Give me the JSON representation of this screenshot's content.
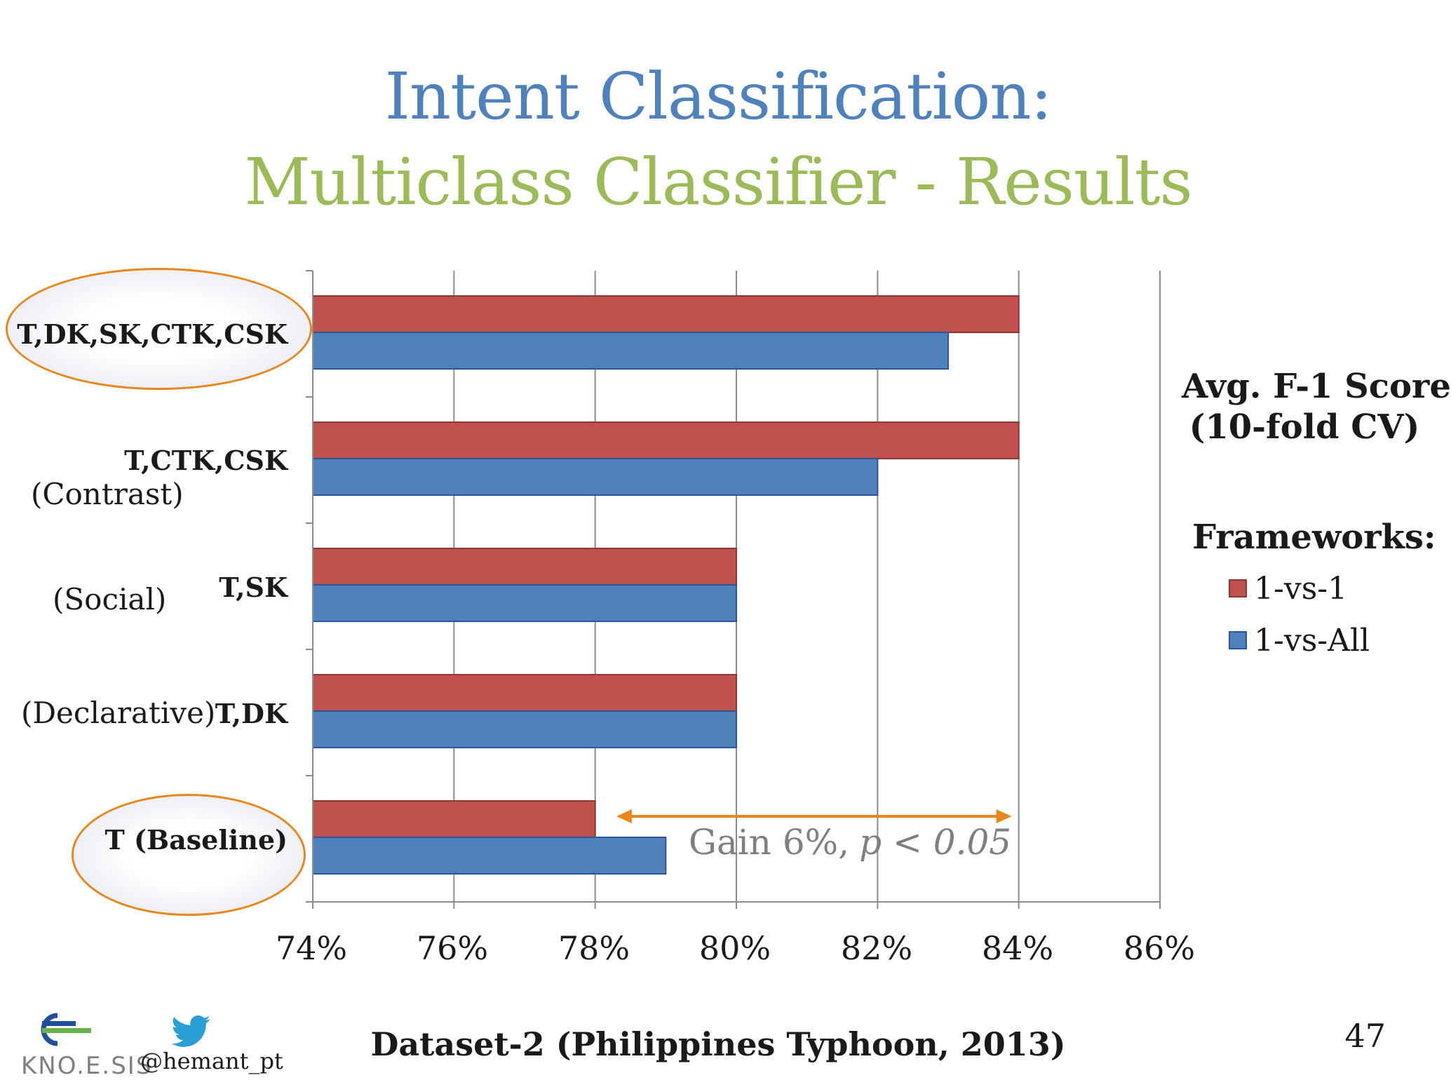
{
  "title": {
    "line1": "Intent Classification:",
    "line2": "Multiclass Classifier - Results"
  },
  "colors": {
    "title1": "#4f81bd",
    "title2": "#9bbb59",
    "series1": "#c0504d",
    "series2": "#4f81bd",
    "highlight": "#e8871e"
  },
  "chart_data": {
    "type": "bar",
    "orientation": "horizontal",
    "categories": [
      "T,DK,SK,CTK,CSK",
      "T,CTK,CSK",
      "T,SK",
      "T,DK",
      "T (Baseline)"
    ],
    "category_notes": [
      "",
      "(Contrast)",
      "(Social)",
      "(Declarative)",
      ""
    ],
    "highlighted_categories": [
      "T,DK,SK,CTK,CSK",
      "T (Baseline)"
    ],
    "series": [
      {
        "name": "1-vs-1",
        "color": "#c0504d",
        "values": [
          84,
          84,
          80,
          80,
          78
        ]
      },
      {
        "name": "1-vs-All",
        "color": "#4f81bd",
        "values": [
          83,
          82,
          80,
          80,
          79
        ]
      }
    ],
    "xlim": [
      74,
      86
    ],
    "xticks": [
      "74%",
      "76%",
      "78%",
      "80%",
      "82%",
      "84%",
      "86%"
    ],
    "grid": "vertical",
    "legend_position": "right",
    "annotation": {
      "text": "Gain 6%,",
      "pvalue": "p < 0.05",
      "arrow_from": 78.3,
      "arrow_to": 83.9
    }
  },
  "side": {
    "line1": "Avg. F-1 Score",
    "line2": "(10-fold CV)",
    "legend_title": "Frameworks:"
  },
  "footer": {
    "dataset": "Dataset-2 (Philippines Typhoon, 2013)",
    "page_number": "47",
    "handle": "@hemant_pt",
    "logo_text": "KNO.E.SIS"
  }
}
